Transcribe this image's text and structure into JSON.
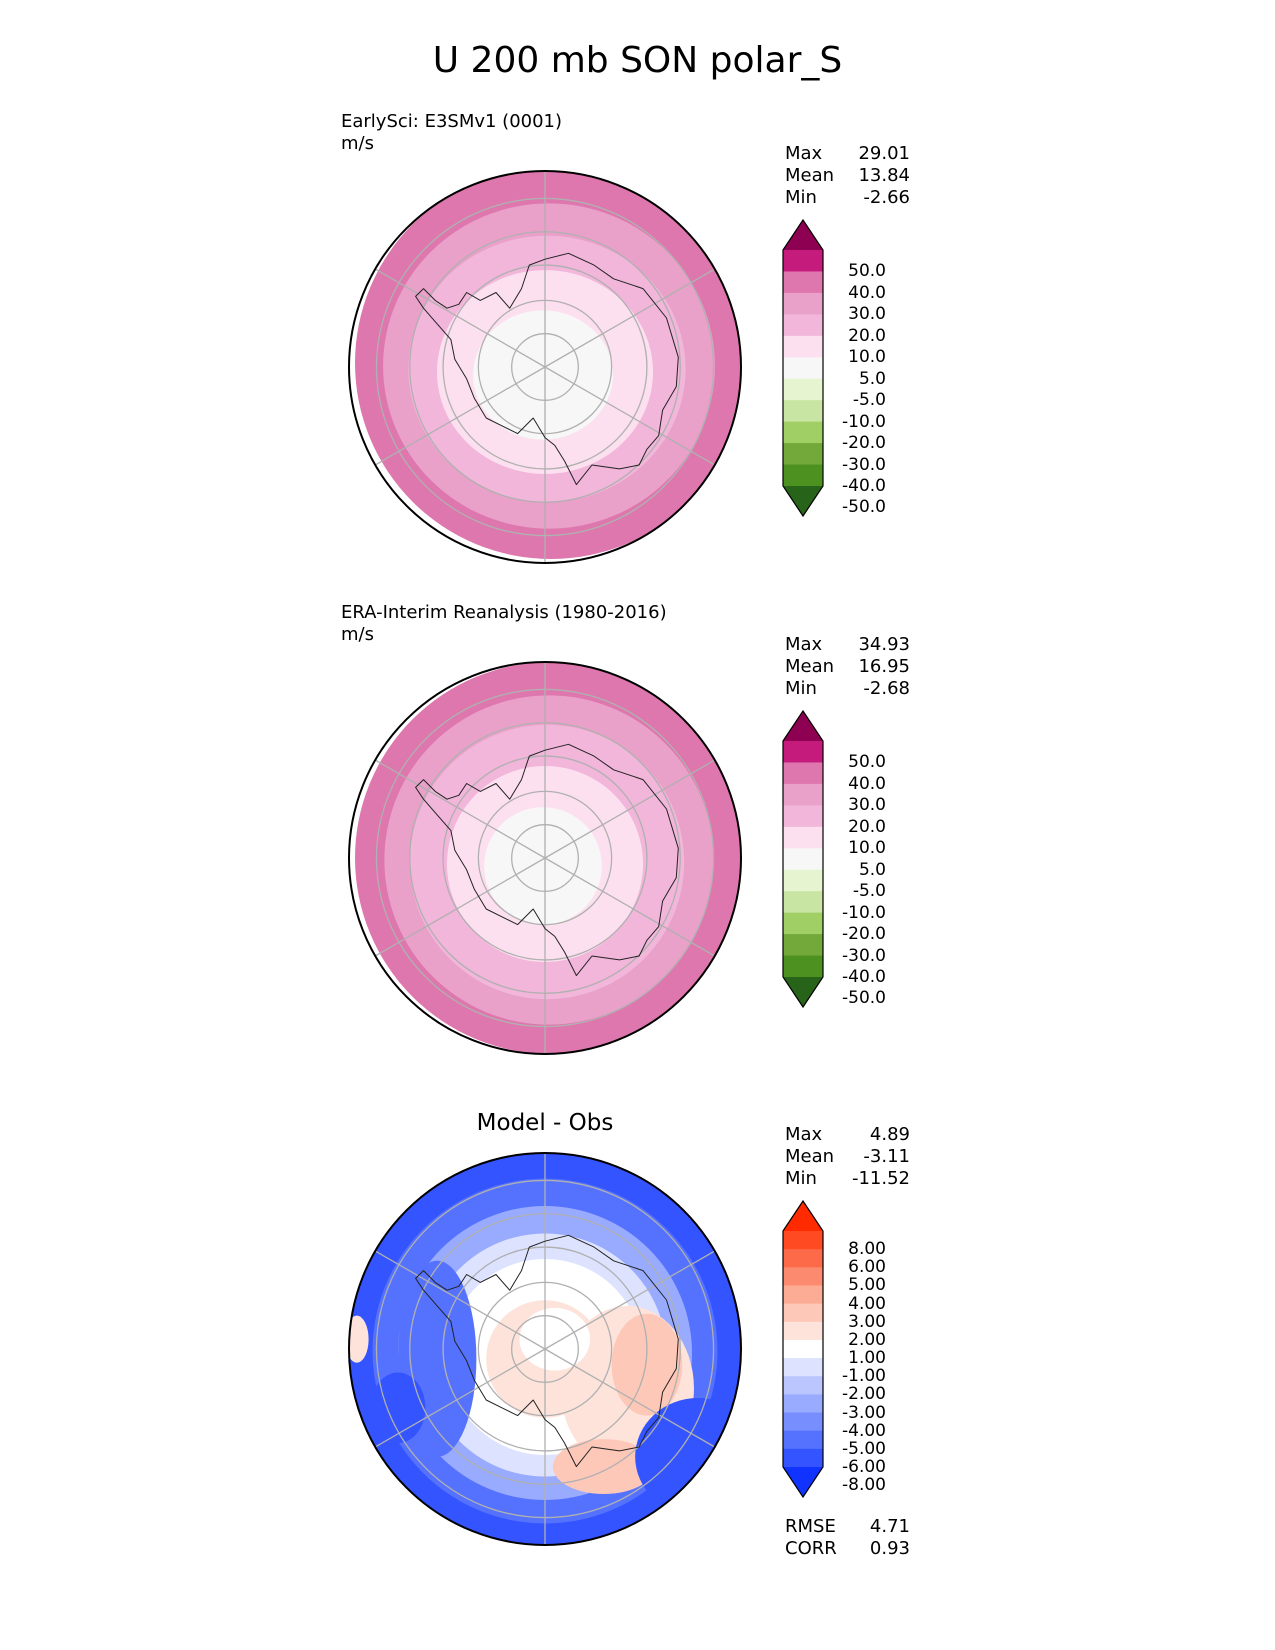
{
  "title": "U 200 mb SON polar_S",
  "chart_data": [
    {
      "type": "heatmap",
      "projection": "south-polar-stereographic",
      "title": "EarlySci: E3SMv1 (0001)",
      "units": "m/s",
      "stats": [
        {
          "label": "Max",
          "value": "29.01"
        },
        {
          "label": "Mean",
          "value": "13.84"
        },
        {
          "label": "Min",
          "value": "-2.66"
        }
      ],
      "colorbar": {
        "levels": [
          "50.0",
          "40.0",
          "30.0",
          "20.0",
          "10.0",
          "5.0",
          "-5.0",
          "-10.0",
          "-20.0",
          "-30.0",
          "-40.0",
          "-50.0"
        ],
        "colors": [
          "#8e0152",
          "#c51b7d",
          "#de77ae",
          "#e9a0c9",
          "#f1b6da",
          "#fde0ef",
          "#f7f7f7",
          "#e6f5d0",
          "#c8e5a3",
          "#9fcf65",
          "#72a93a",
          "#4d9221",
          "#276419"
        ]
      },
      "rings": [
        {
          "r": 1.0,
          "value": 30
        },
        {
          "r": 0.83,
          "value": 20
        },
        {
          "r": 0.68,
          "value": 10
        },
        {
          "r": 0.52,
          "value": 5
        },
        {
          "r": 0.33,
          "value": 0
        }
      ]
    },
    {
      "type": "heatmap",
      "projection": "south-polar-stereographic",
      "title": "ERA-Interim Reanalysis (1980-2016)",
      "units": "m/s",
      "stats": [
        {
          "label": "Max",
          "value": "34.93"
        },
        {
          "label": "Mean",
          "value": "16.95"
        },
        {
          "label": "Min",
          "value": "-2.68"
        }
      ],
      "colorbar": {
        "levels": [
          "50.0",
          "40.0",
          "30.0",
          "20.0",
          "10.0",
          "5.0",
          "-5.0",
          "-10.0",
          "-20.0",
          "-30.0",
          "-40.0",
          "-50.0"
        ],
        "colors": [
          "#8e0152",
          "#c51b7d",
          "#de77ae",
          "#e9a0c9",
          "#f1b6da",
          "#fde0ef",
          "#f7f7f7",
          "#e6f5d0",
          "#c8e5a3",
          "#9fcf65",
          "#72a93a",
          "#4d9221",
          "#276419"
        ]
      },
      "rings": [
        {
          "r": 1.0,
          "value": 30
        },
        {
          "r": 0.84,
          "value": 20
        },
        {
          "r": 0.7,
          "value": 10
        },
        {
          "r": 0.5,
          "value": 5
        },
        {
          "r": 0.3,
          "value": 0
        }
      ]
    },
    {
      "type": "heatmap",
      "projection": "south-polar-stereographic",
      "title": "Model - Obs",
      "units": "",
      "stats": [
        {
          "label": "Max",
          "value": "4.89"
        },
        {
          "label": "Mean",
          "value": "-3.11"
        },
        {
          "label": "Min",
          "value": "-11.52"
        }
      ],
      "metrics": [
        {
          "label": "RMSE",
          "value": "4.71"
        },
        {
          "label": "CORR",
          "value": "0.93"
        }
      ],
      "colorbar": {
        "levels": [
          "8.00",
          "6.00",
          "5.00",
          "4.00",
          "3.00",
          "2.00",
          "1.00",
          "-1.00",
          "-2.00",
          "-3.00",
          "-4.00",
          "-5.00",
          "-6.00",
          "-8.00"
        ],
        "colors": [
          "#ff2a00",
          "#ff4a22",
          "#fd6a4a",
          "#fc8a6e",
          "#fcab95",
          "#fdc8b8",
          "#fde3da",
          "#ffffff",
          "#dde3ff",
          "#bbc6ff",
          "#99abff",
          "#778eff",
          "#5572ff",
          "#3354ff",
          "#1133ff"
        ]
      },
      "rings": [
        {
          "r": 1.0,
          "value": -8
        },
        {
          "r": 0.88,
          "value": -6
        },
        {
          "r": 0.75,
          "value": -4
        },
        {
          "r": 0.62,
          "value": -2
        },
        {
          "r": 0.5,
          "value": 0
        },
        {
          "r": 0.3,
          "value": 1
        }
      ]
    }
  ]
}
